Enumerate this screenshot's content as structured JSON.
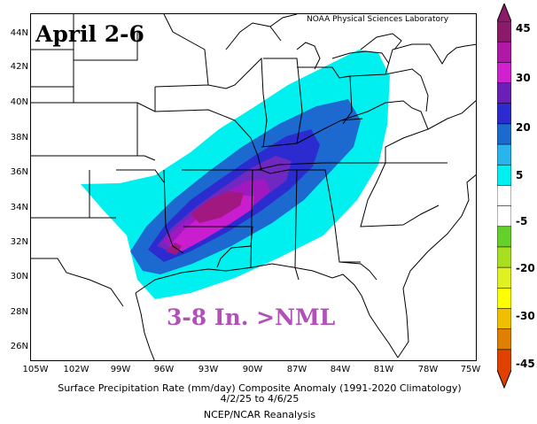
{
  "map": {
    "lab_label": "NOAA Physical Sciences Laboratory",
    "date_title": "April 2-6",
    "anomaly_note": "3-8 In. >NML",
    "lat_labels": [
      "44N",
      "42N",
      "40N",
      "38N",
      "36N",
      "34N",
      "32N",
      "30N",
      "28N",
      "26N"
    ],
    "lon_labels": [
      "105W",
      "102W",
      "99W",
      "96W",
      "93W",
      "90W",
      "87W",
      "84W",
      "81W",
      "78W",
      "75W"
    ],
    "caption_line1": "Surface Precipitation Rate (mm/day) Composite Anomaly (1991-2020 Climatology)",
    "caption_line2": "4/2/25 to 4/6/25",
    "caption_line3": "NCEP/NCAR Reanalysis"
  },
  "legend": {
    "tick_labels": [
      "45",
      "30",
      "20",
      "5",
      "-5",
      "-20",
      "-30",
      "-45"
    ],
    "colors": [
      "#8b1a6a",
      "#b118a8",
      "#d020d0",
      "#6a20b8",
      "#2b2bd0",
      "#1c6ad0",
      "#2ab4ec",
      "#00f0f0",
      "#ffffff",
      "#ffffff",
      "#66d02a",
      "#a8e020",
      "#e0f020",
      "#ffff00",
      "#f0c000",
      "#e08000",
      "#e04000"
    ]
  },
  "colors": {
    "cyan": "#00f0f0",
    "mid_blue": "#1c6ad0",
    "royal_blue": "#2b2bd0",
    "violet": "#7028c0",
    "purple": "#a018c0",
    "magenta": "#c81ed0",
    "deep_magenta": "#a01880"
  }
}
